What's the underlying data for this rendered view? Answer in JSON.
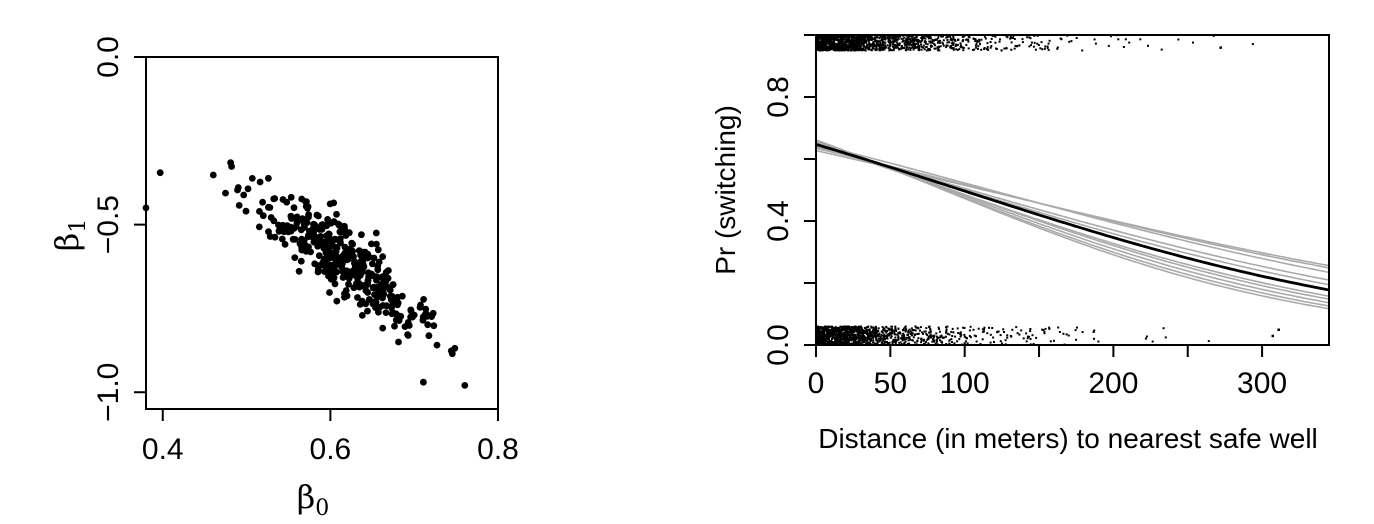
{
  "chart_data": [
    {
      "type": "scatter",
      "xlabel_symbol": "β",
      "xlabel_subscript": "0",
      "ylabel_symbol": "β",
      "ylabel_subscript": "1",
      "xlim": [
        0.38,
        0.8
      ],
      "ylim": [
        -1.05,
        0.0
      ],
      "x_ticks": [
        0.4,
        0.6,
        0.8
      ],
      "x_tick_labels": [
        "0.4",
        "0.6",
        "0.8"
      ],
      "y_ticks": [
        0.0,
        -0.5,
        -1.0
      ],
      "y_tick_labels": [
        "0.0",
        "−0.5",
        "−1.0"
      ],
      "grid": false,
      "marker": "filled-circle",
      "color": "#000000",
      "points_description_count": 400,
      "center": [
        0.61,
        -0.6
      ],
      "x_sd": 0.052,
      "y_sd": 0.11,
      "correlation": -0.88,
      "outliers": [
        [
          0.397,
          -0.345
        ],
        [
          0.481,
          -0.315
        ],
        [
          0.711,
          -0.97
        ],
        [
          0.38,
          -0.45
        ]
      ]
    },
    {
      "type": "line",
      "xlabel": "Distance (in meters) to nearest safe well",
      "ylabel": "Pr (switching)",
      "xlim": [
        0,
        345
      ],
      "ylim": [
        0.0,
        1.0
      ],
      "x_ticks": [
        0,
        50,
        100,
        150,
        200,
        250,
        300
      ],
      "x_tick_labels": [
        "0",
        "50",
        "100",
        "",
        "200",
        "",
        "300"
      ],
      "y_ticks": [
        0.0,
        0.2,
        0.4,
        0.6,
        0.8,
        1.0
      ],
      "y_tick_labels": [
        "0.0",
        "",
        "0.4",
        "",
        "0.8",
        ""
      ],
      "grid": false,
      "fitted_curve": {
        "color": "#000000",
        "intercept": 0.606,
        "slope_per_meter": -0.0062
      },
      "simulated_curves": {
        "color": "#aaaaaa",
        "intercepts": [
          0.61,
          0.64,
          0.55,
          0.58,
          0.67,
          0.6,
          0.57,
          0.63,
          0.52,
          0.65
        ],
        "slopes_per_meter": [
          -0.0052,
          -0.0072,
          -0.0048,
          -0.0058,
          -0.0078,
          -0.0066,
          -0.0055,
          -0.0069,
          -0.0046,
          -0.0075
        ]
      },
      "jittered_points": {
        "color": "#000000",
        "upper_band_center": 0.98,
        "lower_band_center": 0.03,
        "band_halfwidth": 0.03,
        "upper_count": 1750,
        "lower_count": 1250,
        "upper_isolated_x": [
          272
        ],
        "lower_isolated_x": [
          307,
          311
        ]
      }
    }
  ]
}
